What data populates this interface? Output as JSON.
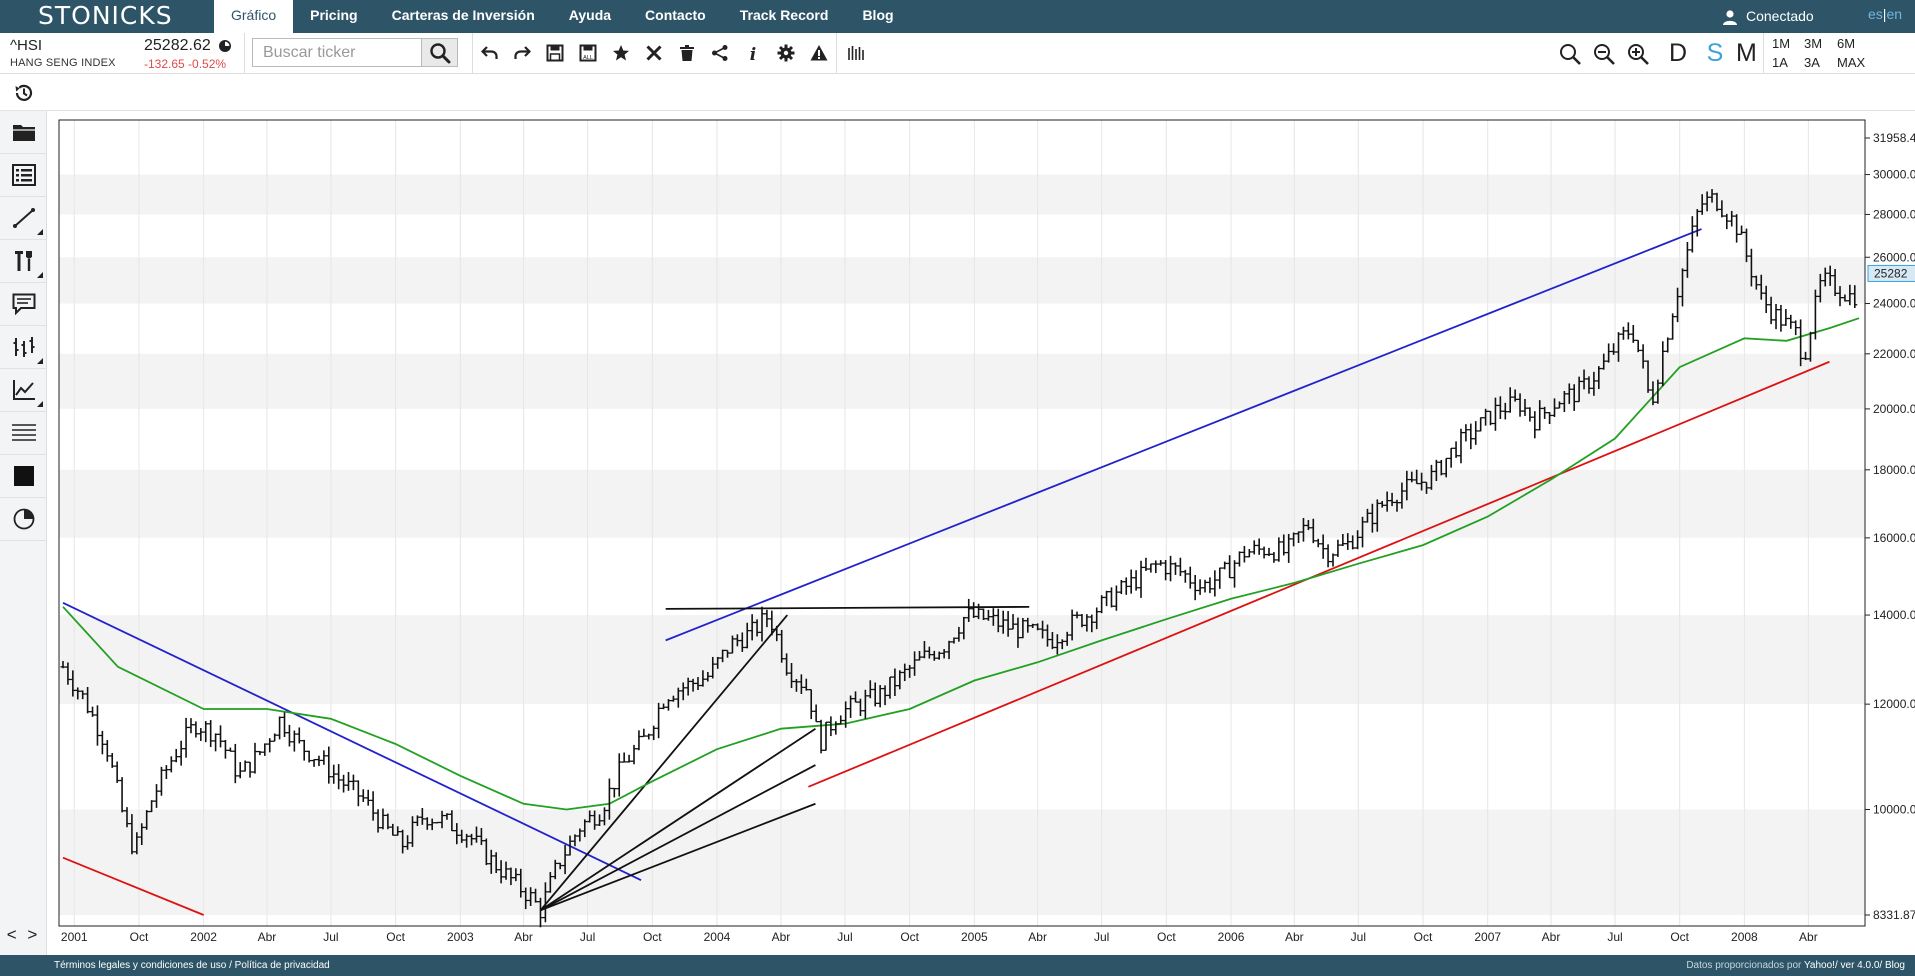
{
  "app": {
    "brand": "STONICKS",
    "nav_tabs": [
      {
        "label": "Gráfico",
        "active": true
      },
      {
        "label": "Pricing",
        "active": false
      },
      {
        "label": "Carteras de Inversión",
        "active": false
      },
      {
        "label": "Ayuda",
        "active": false
      },
      {
        "label": "Contacto",
        "active": false
      },
      {
        "label": "Track Record",
        "active": false
      },
      {
        "label": "Blog",
        "active": false
      }
    ],
    "user_status": "Conectado",
    "lang": {
      "es": "es",
      "sep": "|",
      "en": "en"
    }
  },
  "ticker": {
    "symbol": "^HSI",
    "name": "HANG SENG INDEX",
    "price": "25282.62",
    "change": "-132.65 -0.52%"
  },
  "search": {
    "placeholder": "Buscar ticker",
    "value": ""
  },
  "toolbar_icons": [
    "undo-icon",
    "redo-icon",
    "save-icon",
    "save-all-icon",
    "star-icon",
    "close-icon",
    "trash-icon",
    "share-icon",
    "info-icon",
    "gear-icon",
    "warning-icon",
    "bars-icon"
  ],
  "zoom_icons": [
    "zoom-fit-icon",
    "zoom-out-icon",
    "zoom-in-icon"
  ],
  "periods": [
    {
      "label": "D",
      "active": false
    },
    {
      "label": "S",
      "active": true
    },
    {
      "label": "M",
      "active": false
    }
  ],
  "ranges": [
    "1M",
    "3M",
    "6M",
    "1A",
    "3A",
    "MAX"
  ],
  "sidebar_items": [
    "folder-icon",
    "list-icon",
    "line-tool-icon",
    "tools-icon",
    "comment-icon",
    "indicators-icon",
    "chart-line-icon",
    "horizontal-lines-icon",
    "square-icon",
    "pie-icon"
  ],
  "sidebar_collapse": "< >",
  "chart_data": {
    "type": "line",
    "subtype": "ohlc-bars-weekly",
    "ticker": "^HSI",
    "y_scale": "log",
    "ylim": [
      8331.87,
      31958.4
    ],
    "y_ticks": [
      "31958.4",
      "30000.0",
      "28000.0",
      "26000.0",
      "24000.0",
      "22000.0",
      "20000.0",
      "18000.0",
      "16000.0",
      "14000.0",
      "12000.0",
      "10000.0",
      "8331.87"
    ],
    "current_price_label": "25282",
    "x_ticks": [
      "2001",
      "Oct",
      "2002",
      "Abr",
      "Jul",
      "Oct",
      "2003",
      "Abr",
      "Jul",
      "Oct",
      "2004",
      "Abr",
      "Jul",
      "Oct",
      "2005",
      "Abr",
      "Jul",
      "Oct",
      "2006",
      "Abr",
      "Jul",
      "Oct",
      "2007",
      "Abr",
      "Jul",
      "Oct",
      "2008",
      "Abr"
    ],
    "x_tick_dates": [
      "2001-07-01",
      "2001-10-01",
      "2002-01-01",
      "2002-04-01",
      "2002-07-01",
      "2002-10-01",
      "2003-01-01",
      "2003-04-01",
      "2003-07-01",
      "2003-10-01",
      "2004-01-01",
      "2004-04-01",
      "2004-07-01",
      "2004-10-01",
      "2005-01-01",
      "2005-04-01",
      "2005-07-01",
      "2005-10-01",
      "2006-01-01",
      "2006-04-01",
      "2006-07-01",
      "2006-10-01",
      "2007-01-01",
      "2007-04-01",
      "2007-07-01",
      "2007-10-01",
      "2008-01-01",
      "2008-04-01"
    ],
    "xlim": [
      "2001-06-15",
      "2008-06-12"
    ],
    "price_series": {
      "name": "^HSI",
      "dates": [
        "2001-06-15",
        "2001-07-15",
        "2001-08-15",
        "2001-09-10",
        "2001-09-25",
        "2001-10-20",
        "2001-11-20",
        "2001-12-20",
        "2002-01-20",
        "2002-02-20",
        "2002-03-20",
        "2002-04-20",
        "2002-05-15",
        "2002-06-15",
        "2002-07-15",
        "2002-08-15",
        "2002-09-15",
        "2002-10-10",
        "2002-11-10",
        "2002-12-10",
        "2003-01-10",
        "2003-02-10",
        "2003-03-10",
        "2003-04-10",
        "2003-04-25",
        "2003-05-20",
        "2003-06-20",
        "2003-07-20",
        "2003-08-20",
        "2003-09-20",
        "2003-10-20",
        "2003-11-20",
        "2003-12-20",
        "2004-01-20",
        "2004-02-20",
        "2004-03-15",
        "2004-04-10",
        "2004-05-10",
        "2004-05-25",
        "2004-06-20",
        "2004-07-20",
        "2004-08-20",
        "2004-09-20",
        "2004-10-20",
        "2004-11-20",
        "2004-12-20",
        "2005-01-20",
        "2005-02-20",
        "2005-03-20",
        "2005-04-20",
        "2005-05-20",
        "2005-06-20",
        "2005-07-20",
        "2005-08-20",
        "2005-09-20",
        "2005-10-20",
        "2005-11-20",
        "2005-12-20",
        "2006-01-20",
        "2006-02-20",
        "2006-03-20",
        "2006-04-20",
        "2006-05-15",
        "2006-06-15",
        "2006-07-15",
        "2006-08-15",
        "2006-09-15",
        "2006-10-15",
        "2006-11-15",
        "2006-12-15",
        "2007-01-15",
        "2007-02-15",
        "2007-03-10",
        "2007-04-10",
        "2007-05-10",
        "2007-06-10",
        "2007-07-10",
        "2007-07-25",
        "2007-08-15",
        "2007-08-20",
        "2007-09-15",
        "2007-10-10",
        "2007-10-30",
        "2007-11-20",
        "2007-12-20",
        "2008-01-10",
        "2008-01-25",
        "2008-02-15",
        "2008-03-15",
        "2008-03-25",
        "2008-04-20",
        "2008-05-15",
        "2008-06-05",
        "2008-06-12"
      ],
      "close": [
        12800,
        12100,
        11200,
        9800,
        9300,
        10200,
        11000,
        11600,
        11400,
        10600,
        11000,
        11700,
        11200,
        10900,
        10500,
        10200,
        9700,
        9400,
        9900,
        9800,
        9600,
        9200,
        8900,
        8600,
        8400,
        9100,
        9700,
        10000,
        10800,
        11300,
        12200,
        12400,
        12600,
        13300,
        13600,
        14000,
        12800,
        12300,
        11200,
        11800,
        12000,
        12200,
        12600,
        13000,
        13300,
        14000,
        13900,
        13700,
        13600,
        13400,
        13800,
        14100,
        14500,
        14900,
        15300,
        15100,
        14700,
        15000,
        15600,
        15700,
        15600,
        16400,
        15600,
        15800,
        16500,
        17200,
        17500,
        17800,
        18700,
        19300,
        20000,
        20200,
        19600,
        20300,
        20600,
        21400,
        22600,
        23000,
        21000,
        20000,
        23000,
        26000,
        28500,
        28800,
        27500,
        25500,
        24200,
        23500,
        22800,
        21800,
        25000,
        24600,
        24200,
        25282
      ]
    },
    "moving_average": {
      "name": "MA",
      "color": "#22a022",
      "dates": [
        "2001-06-15",
        "2001-09-01",
        "2002-01-01",
        "2002-04-01",
        "2002-07-01",
        "2002-10-01",
        "2003-01-01",
        "2003-04-01",
        "2003-06-01",
        "2003-08-01",
        "2003-10-01",
        "2004-01-01",
        "2004-04-01",
        "2004-07-01",
        "2004-10-01",
        "2005-01-01",
        "2005-04-01",
        "2005-07-01",
        "2005-10-01",
        "2006-01-01",
        "2006-04-01",
        "2006-07-01",
        "2006-10-01",
        "2007-01-01",
        "2007-04-01",
        "2007-07-01",
        "2007-10-01",
        "2008-01-01",
        "2008-03-01",
        "2008-05-01",
        "2008-06-12"
      ],
      "values": [
        14200,
        12800,
        11900,
        11900,
        11700,
        11200,
        10600,
        10100,
        10000,
        10100,
        10500,
        11100,
        11500,
        11600,
        11900,
        12500,
        12900,
        13400,
        13900,
        14400,
        14800,
        15300,
        15800,
        16600,
        17700,
        19000,
        21500,
        22600,
        22500,
        23000,
        23400
      ]
    },
    "drawings": [
      {
        "color": "#2222cc",
        "points": [
          [
            "2001-06-15",
            14300
          ],
          [
            "2003-09-15",
            8850
          ]
        ]
      },
      {
        "color": "#2222cc",
        "points": [
          [
            "2003-10-20",
            13400
          ],
          [
            "2007-11-01",
            27300
          ]
        ]
      },
      {
        "color": "#dd1111",
        "points": [
          [
            "2001-06-15",
            9200
          ],
          [
            "2002-01-01",
            8331.87
          ]
        ]
      },
      {
        "color": "#dd1111",
        "points": [
          [
            "2004-05-10",
            10400
          ],
          [
            "2008-05-01",
            21700
          ]
        ]
      },
      {
        "color": "#111111",
        "points": [
          [
            "2003-10-20",
            14150
          ],
          [
            "2005-03-20",
            14200
          ]
        ]
      },
      {
        "color": "#111111",
        "points": [
          [
            "2003-04-25",
            8400
          ],
          [
            "2004-04-10",
            14000
          ]
        ]
      },
      {
        "color": "#111111",
        "points": [
          [
            "2003-04-25",
            8400
          ],
          [
            "2004-05-20",
            11500
          ]
        ]
      },
      {
        "color": "#111111",
        "points": [
          [
            "2003-04-25",
            8400
          ],
          [
            "2004-05-20",
            10800
          ]
        ]
      },
      {
        "color": "#111111",
        "points": [
          [
            "2003-04-25",
            8400
          ],
          [
            "2004-05-20",
            10100
          ]
        ]
      }
    ]
  },
  "footer": {
    "legal": "Términos legales y condiciones de uso",
    "sep": "/",
    "privacy": "Política de privacidad",
    "data_prefix": "Datos proporcionados por",
    "data_links": "Yahoo!/ ver 4.0.0/ Blog"
  }
}
